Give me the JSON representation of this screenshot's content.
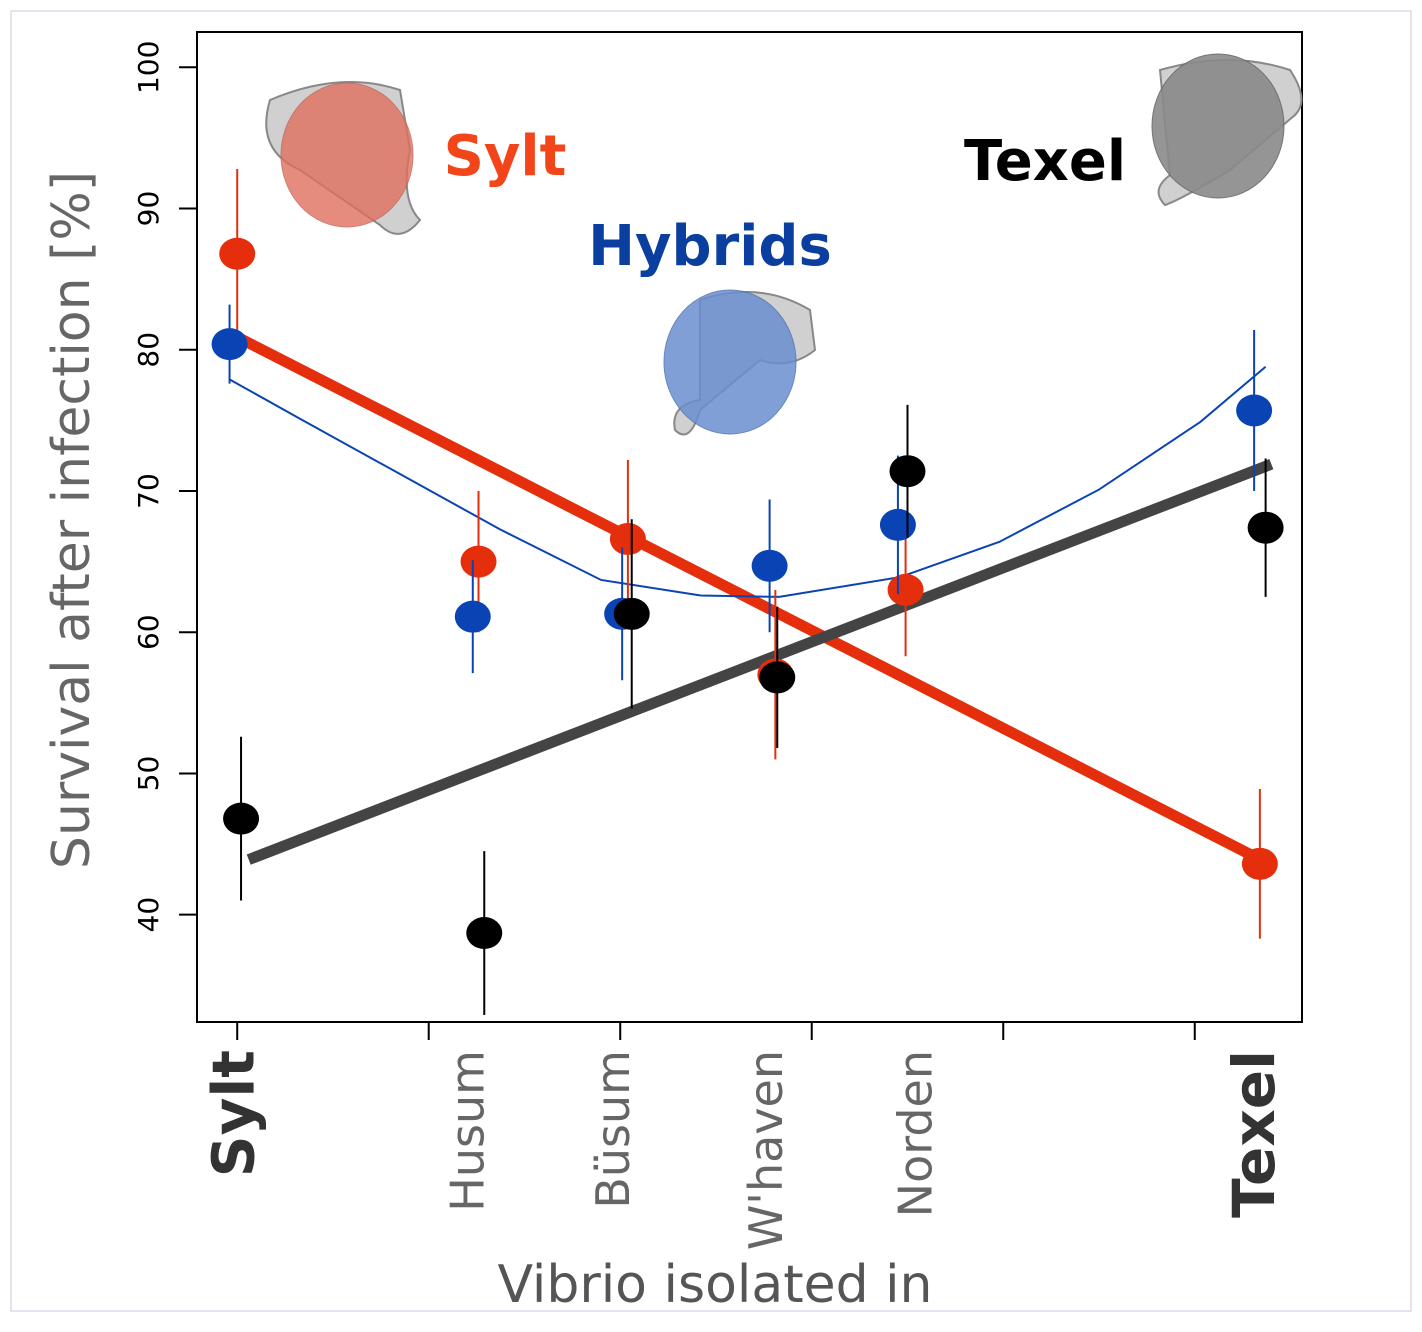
{
  "chart_data": {
    "type": "scatter",
    "y_label": "Survival after infection [%]",
    "x_label": "Vibrio isolated in",
    "xlim": [
      -0.21,
      5.56
    ],
    "xticks": [
      0,
      1,
      2,
      3,
      4,
      5
    ],
    "ylim": [
      32.4,
      102.5
    ],
    "yticks": [
      40,
      50,
      60,
      70,
      80,
      90,
      100
    ],
    "site_labels": [
      {
        "label": "Sylt",
        "x": 0,
        "bold": true
      },
      {
        "label": "Husum",
        "x": 1.22,
        "bold": false
      },
      {
        "label": "Büsum",
        "x": 1.98,
        "bold": false
      },
      {
        "label": "W'haven",
        "x": 2.78,
        "bold": false
      },
      {
        "label": "Norden",
        "x": 3.56,
        "bold": false
      },
      {
        "label": "Texel",
        "x": 5.33,
        "bold": true
      }
    ],
    "series": [
      {
        "name": "Sylt",
        "color": "#e52e0c",
        "text_color": "#f2461a",
        "x": [
          0,
          1.26,
          2.04,
          2.81,
          3.49,
          5.34
        ],
        "values": [
          86.8,
          65.0,
          66.6,
          57.0,
          63.0,
          43.6
        ],
        "errors": [
          6,
          5,
          5.6,
          6,
          4.7,
          5.3
        ],
        "fit_x": [
          0,
          5.4
        ],
        "fit_y": [
          80.9,
          43.5
        ]
      },
      {
        "name": "Hybrids",
        "color": "#0a44b4",
        "text_color": "#0a3fa0",
        "x": [
          -0.04,
          1.23,
          2.01,
          2.78,
          3.45,
          5.31
        ],
        "values": [
          80.4,
          61.1,
          61.3,
          64.7,
          67.6,
          75.7
        ],
        "errors": [
          2.8,
          4,
          4.7,
          4.7,
          4.9,
          5.7
        ],
        "fit_x": [
          -0.04,
          0.33,
          0.85,
          1.37,
          1.9,
          2.42,
          2.83,
          3.46,
          3.98,
          4.5,
          5.03,
          5.37
        ],
        "fit_y": [
          77.9,
          75.1,
          71.2,
          67.3,
          63.7,
          62.6,
          62.5,
          63.9,
          66.4,
          70.1,
          74.9,
          78.8
        ]
      },
      {
        "name": "Texel",
        "color": "#000000",
        "text_color": "#000000",
        "fit_color": "#444444",
        "x": [
          0.02,
          1.29,
          2.06,
          2.82,
          3.5,
          5.37
        ],
        "values": [
          46.8,
          38.7,
          61.3,
          56.8,
          71.4,
          67.4
        ],
        "errors": [
          5.8,
          5.8,
          6.7,
          5,
          4.7,
          4.9
        ],
        "fit_x": [
          0.06,
          5.4
        ],
        "fit_y": [
          43.9,
          71.9
        ]
      }
    ]
  }
}
